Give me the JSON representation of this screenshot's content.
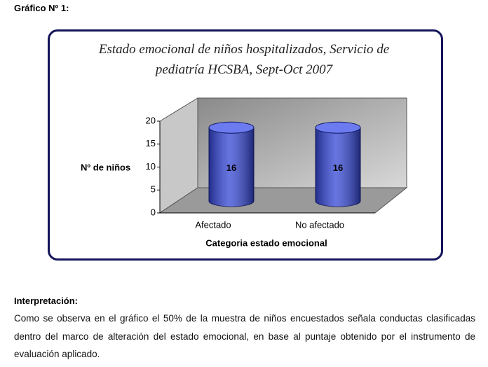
{
  "heading": "Gráfico Nº 1:",
  "chart_data": {
    "type": "bar3d",
    "title": "Estado emocional de niños hospitalizados, Servicio de pediatría HCSBA, Sept-Oct 2007",
    "categories": [
      "Afectado",
      "No afectado"
    ],
    "values": [
      16,
      16
    ],
    "color": "#3346d6",
    "xlabel": "Categoria estado emocional",
    "ylabel": "Nº de niños",
    "ylim": [
      0,
      20
    ],
    "yticks": [
      0,
      5,
      10,
      15,
      20
    ]
  },
  "interpretation": {
    "title": "Interpretación:",
    "text": "Como se observa en el gráfico el 50% de la muestra de niños encuestados señala conductas clasificadas dentro del marco de alteración del estado emocional, en base al puntaje obtenido por el  instrumento de evaluación aplicado."
  }
}
